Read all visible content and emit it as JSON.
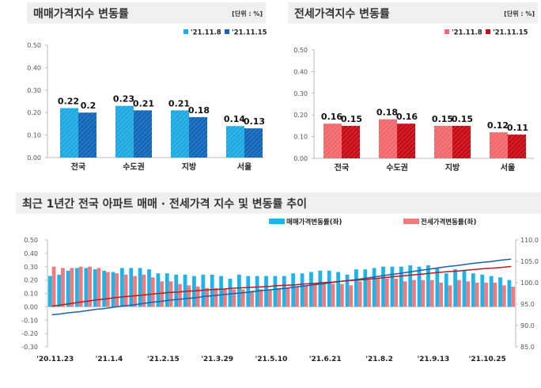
{
  "chart_data": [
    {
      "type": "bar",
      "title": "매매가격지수 변동률",
      "unit": "[단위 : %]",
      "categories": [
        "전국",
        "수도권",
        "지방",
        "서울"
      ],
      "series": [
        {
          "name": "'21.11.8",
          "values": [
            0.22,
            0.23,
            0.21,
            0.14
          ],
          "color": "#1ea9e1"
        },
        {
          "name": "'21.11.15",
          "values": [
            0.2,
            0.21,
            0.18,
            0.13
          ],
          "color": "#1166b8"
        }
      ],
      "ylim": [
        0,
        0.5
      ],
      "yticks": [
        "0.00",
        "0.10",
        "0.20",
        "0.30",
        "0.40",
        "0.50"
      ],
      "legend": "top-right"
    },
    {
      "type": "bar",
      "title": "전세가격지수 변동률",
      "unit": "[단위 : %]",
      "categories": [
        "전국",
        "수도권",
        "지방",
        "서울"
      ],
      "series": [
        {
          "name": "'21.11.8",
          "values": [
            0.16,
            0.18,
            0.15,
            0.12
          ],
          "color": "#f0686c"
        },
        {
          "name": "'21.11.15",
          "values": [
            0.15,
            0.16,
            0.15,
            0.11
          ],
          "color": "#c80a14"
        }
      ],
      "ylim": [
        0,
        0.5
      ],
      "yticks": [
        "0.00",
        "0.10",
        "0.20",
        "0.30",
        "0.40",
        "0.50"
      ],
      "legend": "top-right"
    },
    {
      "type": "bar+line",
      "title": "최근 1년간 전국 아파트 매매 · 전세가격 지수 및 변동률 추이",
      "xticks": [
        "'20.11.23",
        "'21.1.4",
        "'21.2.15",
        "'21.3.29",
        "'21.5.10",
        "'21.6.21",
        "'21.8.2",
        "'21.9.13",
        "'21.10.25"
      ],
      "series": [
        {
          "name": "매매가격변동률(좌)",
          "kind": "bar",
          "axis": "left",
          "color": "#1eb4ea",
          "values": [
            0.23,
            0.24,
            0.27,
            0.29,
            0.29,
            0.28,
            0.27,
            0.26,
            0.29,
            0.29,
            0.29,
            0.28,
            0.25,
            0.25,
            0.24,
            0.24,
            0.23,
            0.24,
            0.24,
            0.23,
            0.21,
            0.24,
            0.23,
            0.23,
            0.23,
            0.23,
            0.23,
            0.25,
            0.25,
            0.26,
            0.27,
            0.27,
            0.26,
            0.24,
            0.28,
            0.28,
            0.29,
            0.3,
            0.3,
            0.3,
            0.31,
            0.3,
            0.31,
            0.29,
            0.25,
            0.28,
            0.27,
            0.25,
            0.24,
            0.23,
            0.22,
            0.2
          ]
        },
        {
          "name": "전세가격변동률(좌)",
          "kind": "bar",
          "axis": "left",
          "color": "#ee7b7f",
          "values": [
            0.3,
            0.29,
            0.29,
            0.3,
            0.3,
            0.29,
            0.26,
            0.25,
            0.24,
            0.23,
            0.24,
            0.22,
            0.19,
            0.19,
            0.17,
            0.16,
            0.15,
            0.14,
            0.14,
            0.13,
            0.13,
            0.13,
            0.12,
            0.13,
            0.13,
            0.14,
            0.14,
            0.15,
            0.16,
            0.17,
            0.17,
            0.17,
            0.17,
            0.16,
            0.19,
            0.2,
            0.21,
            0.21,
            0.21,
            0.19,
            0.2,
            0.2,
            0.2,
            0.18,
            0.16,
            0.2,
            0.19,
            0.18,
            0.18,
            0.18,
            0.16,
            0.15
          ]
        },
        {
          "kind": "line",
          "axis": "right",
          "color": "#1f5fa8",
          "values": [
            92.5,
            92.7,
            93.0,
            93.2,
            93.5,
            93.8,
            94.0,
            94.3,
            94.6,
            94.8,
            95.1,
            95.4,
            95.6,
            95.9,
            96.1,
            96.3,
            96.5,
            96.8,
            97.0,
            97.2,
            97.4,
            97.6,
            97.8,
            98.1,
            98.3,
            98.5,
            98.7,
            99.0,
            99.2,
            99.5,
            99.7,
            100.0,
            100.3,
            100.5,
            100.8,
            101.1,
            101.4,
            101.7,
            102.0,
            102.3,
            102.6,
            102.9,
            103.2,
            103.5,
            103.8,
            104.0,
            104.3,
            104.6,
            104.8,
            105.0,
            105.3,
            105.5
          ]
        },
        {
          "kind": "line",
          "axis": "right",
          "color": "#b01e24",
          "values": [
            94.5,
            94.8,
            95.1,
            95.4,
            95.7,
            96.0,
            96.2,
            96.5,
            96.7,
            96.9,
            97.1,
            97.3,
            97.5,
            97.7,
            97.8,
            98.0,
            98.1,
            98.3,
            98.4,
            98.5,
            98.7,
            98.8,
            98.9,
            99.0,
            99.1,
            99.3,
            99.4,
            99.5,
            99.7,
            99.8,
            100.0,
            100.1,
            100.3,
            100.5,
            100.6,
            100.8,
            101.0,
            101.2,
            101.4,
            101.6,
            101.8,
            102.0,
            102.2,
            102.4,
            102.6,
            102.7,
            102.9,
            103.1,
            103.3,
            103.4,
            103.6,
            103.8
          ]
        }
      ],
      "ylim_left": [
        -0.3,
        0.5
      ],
      "yticks_left": [
        "-0.30",
        "-0.20",
        "-0.10",
        "0.00",
        "0.10",
        "0.20",
        "0.30",
        "0.40",
        "0.50"
      ],
      "ylim_right": [
        85,
        110
      ],
      "yticks_right": [
        "85.0",
        "90.0",
        "95.0",
        "100.0",
        "105.0",
        "110.0"
      ],
      "legend": "top-right"
    }
  ]
}
